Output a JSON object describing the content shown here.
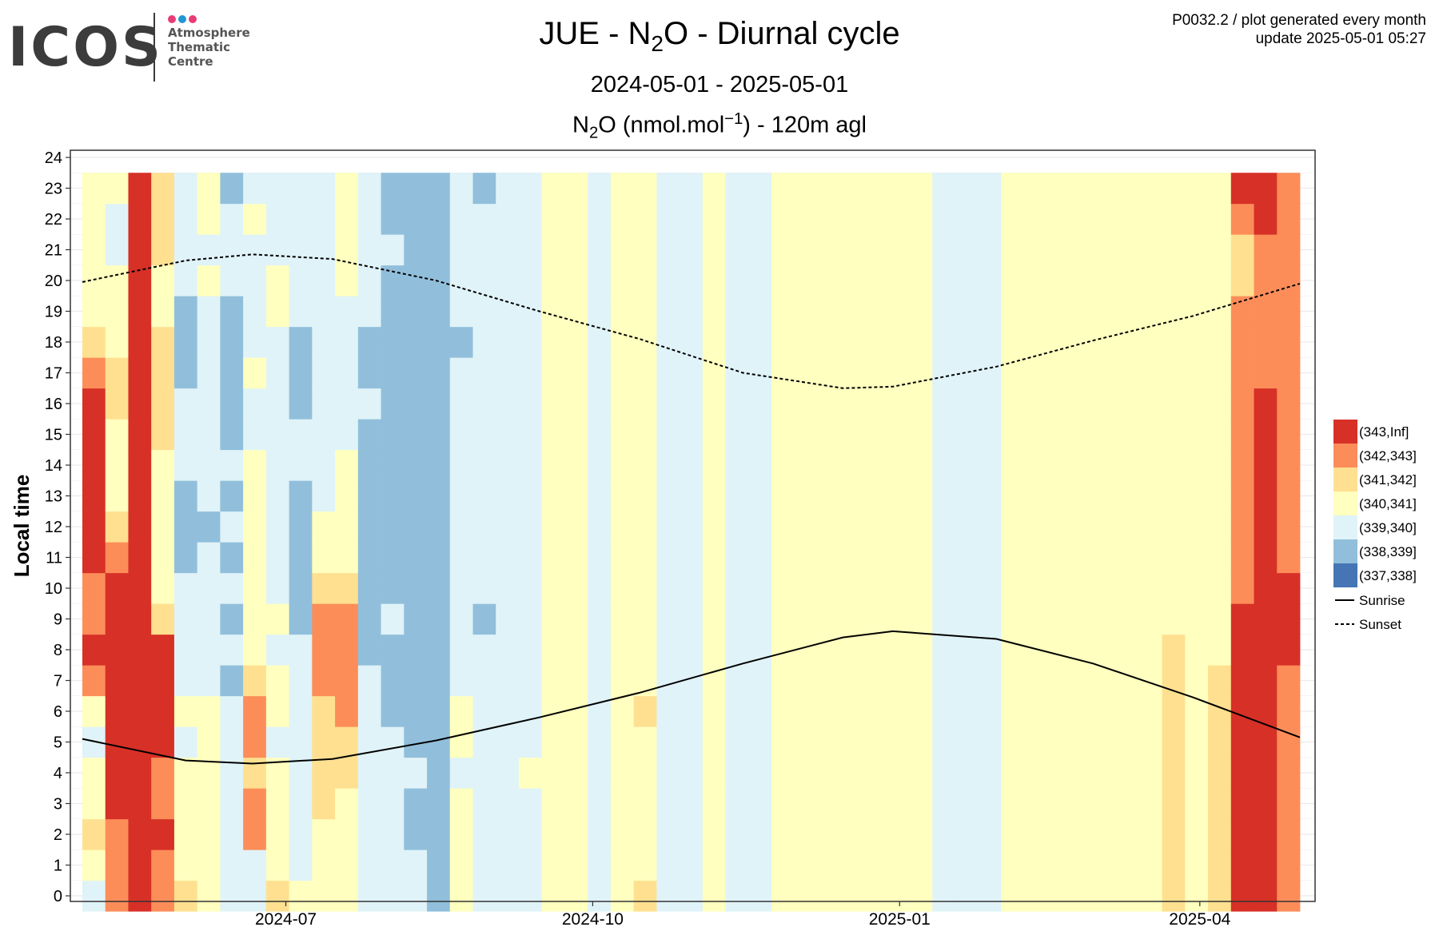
{
  "logo": {
    "word": "ICOS",
    "lines": [
      "Atmosphere",
      "Thematic",
      "Centre"
    ],
    "dot_colors": [
      "#e63d74",
      "#2196d6",
      "#e63d74"
    ]
  },
  "header": {
    "title_pre": "JUE - N",
    "title_sub": "2",
    "title_post": "O - Diurnal cycle",
    "subtitle": "2024-05-01 - 2025-05-01",
    "unit_pre": "N",
    "unit_sub": "2",
    "unit_mid": "O (nmol.mol",
    "unit_sup": "−1",
    "unit_post": ") - 120m agl",
    "meta_line1": "P0032.2 / plot generated every month",
    "meta_line2": "update  2025-05-01 05:27"
  },
  "chart_data": {
    "type": "heatmap",
    "ylabel": "Local time",
    "xlabel": "",
    "x_range": [
      "2024-05-01",
      "2025-05-01"
    ],
    "x_ticks": [
      "2024-07",
      "2024-10",
      "2025-01",
      "2025-04"
    ],
    "ylim": [
      0,
      24
    ],
    "y_ticks": [
      0,
      1,
      2,
      3,
      4,
      5,
      6,
      7,
      8,
      9,
      10,
      11,
      12,
      13,
      14,
      15,
      16,
      17,
      18,
      19,
      20,
      21,
      22,
      23,
      24
    ],
    "grid": true,
    "legend_position": "right",
    "bins": [
      {
        "label": "(343,Inf]",
        "color": "#d73027"
      },
      {
        "label": "(342,343]",
        "color": "#fc8d59"
      },
      {
        "label": "(341,342]",
        "color": "#fee090"
      },
      {
        "label": "(340,341]",
        "color": "#ffffbf"
      },
      {
        "label": "(339,340]",
        "color": "#e0f3f8"
      },
      {
        "label": "(338,339]",
        "color": "#91bfdb"
      },
      {
        "label": "(337,338]",
        "color": "#4575b4"
      }
    ],
    "lines": [
      {
        "name": "Sunrise",
        "style": "solid",
        "dates": [
          "2024-05-01",
          "2024-06-01",
          "2024-06-21",
          "2024-07-15",
          "2024-08-15",
          "2024-09-15",
          "2024-10-15",
          "2024-11-15",
          "2024-12-15",
          "2024-12-30",
          "2025-01-30",
          "2025-02-28",
          "2025-03-30",
          "2025-05-01"
        ],
        "values": [
          5.1,
          4.4,
          4.3,
          4.45,
          5.05,
          5.8,
          6.6,
          7.55,
          8.4,
          8.6,
          8.35,
          7.55,
          6.45,
          5.15
        ]
      },
      {
        "name": "Sunset",
        "style": "dashed",
        "dates": [
          "2024-05-01",
          "2024-06-01",
          "2024-06-21",
          "2024-07-15",
          "2024-08-15",
          "2024-09-15",
          "2024-10-15",
          "2024-11-15",
          "2024-12-15",
          "2024-12-30",
          "2025-01-30",
          "2025-02-28",
          "2025-03-30",
          "2025-05-01"
        ],
        "values": [
          19.95,
          20.65,
          20.85,
          20.7,
          20.0,
          19.0,
          18.1,
          17.0,
          16.5,
          16.55,
          17.2,
          18.05,
          18.85,
          19.9
        ]
      }
    ],
    "weekly_bins": [
      [
        4,
        3,
        2,
        3,
        3,
        4,
        3,
        1,
        0,
        1,
        1,
        0,
        0,
        0,
        0,
        0,
        0,
        1,
        2,
        3,
        3,
        3,
        3,
        3
      ],
      [
        1,
        1,
        1,
        0,
        0,
        0,
        0,
        0,
        0,
        0,
        0,
        1,
        2,
        3,
        3,
        3,
        2,
        2,
        3,
        3,
        3,
        4,
        4,
        3
      ],
      [
        0,
        0,
        0,
        0,
        0,
        0,
        0,
        0,
        0,
        0,
        0,
        0,
        0,
        0,
        0,
        0,
        0,
        0,
        0,
        0,
        0,
        0,
        0,
        0
      ],
      [
        1,
        1,
        0,
        1,
        1,
        0,
        0,
        0,
        0,
        2,
        3,
        3,
        3,
        3,
        3,
        2,
        2,
        2,
        2,
        3,
        3,
        2,
        2,
        2
      ],
      [
        2,
        3,
        3,
        3,
        3,
        4,
        3,
        4,
        4,
        4,
        4,
        5,
        5,
        5,
        4,
        4,
        4,
        5,
        5,
        5,
        4,
        4,
        4,
        4
      ],
      [
        3,
        3,
        3,
        3,
        3,
        3,
        3,
        4,
        4,
        4,
        4,
        4,
        5,
        4,
        4,
        4,
        4,
        4,
        4,
        4,
        3,
        4,
        3,
        3
      ],
      [
        4,
        4,
        4,
        4,
        4,
        4,
        4,
        5,
        4,
        5,
        4,
        5,
        4,
        5,
        4,
        5,
        5,
        5,
        5,
        5,
        4,
        4,
        4,
        5
      ],
      [
        4,
        4,
        1,
        1,
        2,
        1,
        1,
        2,
        3,
        3,
        3,
        3,
        3,
        3,
        3,
        4,
        4,
        3,
        4,
        4,
        4,
        4,
        3,
        4
      ],
      [
        2,
        3,
        3,
        3,
        3,
        4,
        3,
        3,
        4,
        3,
        4,
        4,
        4,
        4,
        4,
        4,
        4,
        4,
        4,
        3,
        3,
        4,
        4,
        4
      ],
      [
        3,
        4,
        4,
        4,
        4,
        4,
        4,
        4,
        4,
        5,
        5,
        5,
        5,
        5,
        4,
        4,
        5,
        5,
        5,
        4,
        4,
        4,
        4,
        4
      ],
      [
        3,
        3,
        3,
        2,
        2,
        2,
        2,
        1,
        1,
        1,
        2,
        3,
        3,
        4,
        4,
        4,
        4,
        4,
        4,
        4,
        4,
        4,
        4,
        4
      ],
      [
        3,
        3,
        3,
        3,
        2,
        2,
        1,
        1,
        1,
        1,
        2,
        3,
        3,
        3,
        3,
        4,
        4,
        4,
        4,
        4,
        3,
        3,
        3,
        3
      ],
      [
        4,
        4,
        4,
        4,
        4,
        4,
        4,
        4,
        5,
        5,
        5,
        5,
        5,
        5,
        5,
        5,
        4,
        5,
        5,
        4,
        4,
        4,
        4,
        4
      ],
      [
        4,
        4,
        4,
        4,
        4,
        4,
        5,
        5,
        5,
        4,
        5,
        5,
        5,
        5,
        5,
        5,
        5,
        5,
        5,
        5,
        5,
        4,
        5,
        5
      ],
      [
        4,
        4,
        5,
        5,
        4,
        5,
        5,
        5,
        5,
        5,
        5,
        5,
        5,
        5,
        5,
        5,
        5,
        5,
        5,
        5,
        5,
        5,
        5,
        5
      ],
      [
        5,
        5,
        5,
        5,
        5,
        5,
        5,
        5,
        5,
        5,
        5,
        5,
        5,
        5,
        5,
        5,
        5,
        5,
        5,
        5,
        5,
        5,
        5,
        5
      ],
      [
        3,
        3,
        3,
        3,
        4,
        3,
        3,
        4,
        4,
        4,
        4,
        4,
        4,
        4,
        4,
        4,
        4,
        4,
        5,
        4,
        4,
        4,
        4,
        4
      ],
      [
        4,
        4,
        4,
        4,
        4,
        4,
        4,
        4,
        4,
        5,
        4,
        4,
        4,
        4,
        4,
        4,
        4,
        4,
        4,
        4,
        4,
        4,
        4,
        5
      ],
      [
        4,
        4,
        4,
        4,
        4,
        4,
        4,
        4,
        4,
        4,
        4,
        4,
        4,
        4,
        4,
        4,
        4,
        4,
        4,
        4,
        4,
        4,
        4,
        4
      ],
      [
        4,
        4,
        4,
        4,
        3,
        4,
        4,
        4,
        4,
        4,
        4,
        4,
        4,
        4,
        4,
        4,
        4,
        4,
        4,
        4,
        4,
        4,
        4,
        4
      ],
      [
        3,
        3,
        3,
        3,
        3,
        3,
        3,
        3,
        3,
        3,
        3,
        3,
        3,
        3,
        3,
        3,
        3,
        3,
        3,
        3,
        3,
        3,
        3,
        3
      ],
      [
        3,
        3,
        3,
        3,
        3,
        3,
        3,
        3,
        3,
        3,
        3,
        3,
        3,
        3,
        3,
        3,
        3,
        3,
        3,
        3,
        3,
        3,
        3,
        3
      ],
      [
        4,
        4,
        4,
        4,
        4,
        4,
        4,
        4,
        4,
        4,
        4,
        4,
        4,
        4,
        4,
        4,
        4,
        4,
        4,
        4,
        4,
        4,
        4,
        4
      ],
      [
        3,
        3,
        3,
        3,
        3,
        3,
        3,
        3,
        3,
        3,
        3,
        3,
        3,
        3,
        3,
        3,
        3,
        3,
        3,
        3,
        3,
        3,
        3,
        3
      ],
      [
        2,
        3,
        3,
        3,
        3,
        3,
        2,
        3,
        3,
        3,
        3,
        3,
        3,
        3,
        3,
        3,
        3,
        3,
        3,
        3,
        3,
        3,
        3,
        3
      ],
      [
        4,
        4,
        4,
        4,
        4,
        4,
        4,
        4,
        4,
        4,
        4,
        4,
        4,
        4,
        4,
        4,
        4,
        4,
        4,
        4,
        4,
        4,
        4,
        4
      ],
      [
        4,
        4,
        4,
        4,
        4,
        4,
        4,
        4,
        4,
        4,
        4,
        4,
        4,
        4,
        4,
        4,
        4,
        4,
        4,
        4,
        4,
        4,
        4,
        4
      ],
      [
        3,
        3,
        3,
        3,
        3,
        3,
        3,
        3,
        3,
        3,
        3,
        3,
        3,
        3,
        3,
        3,
        3,
        3,
        3,
        3,
        3,
        3,
        3,
        3
      ],
      [
        4,
        4,
        4,
        4,
        4,
        4,
        4,
        4,
        4,
        4,
        4,
        4,
        4,
        4,
        4,
        4,
        4,
        4,
        4,
        4,
        4,
        4,
        4,
        4
      ],
      [
        4,
        4,
        4,
        4,
        4,
        4,
        4,
        4,
        4,
        4,
        4,
        4,
        4,
        4,
        4,
        4,
        4,
        4,
        4,
        4,
        4,
        4,
        4,
        4
      ],
      [
        3,
        3,
        3,
        3,
        3,
        3,
        3,
        3,
        3,
        3,
        3,
        3,
        3,
        3,
        3,
        3,
        3,
        3,
        3,
        3,
        3,
        3,
        3,
        3
      ],
      [
        3,
        3,
        3,
        3,
        3,
        3,
        3,
        3,
        3,
        3,
        3,
        3,
        3,
        3,
        3,
        3,
        3,
        3,
        3,
        3,
        3,
        3,
        3,
        3
      ],
      [
        3,
        3,
        3,
        3,
        3,
        3,
        3,
        3,
        3,
        3,
        3,
        3,
        3,
        3,
        3,
        3,
        3,
        3,
        3,
        3,
        3,
        3,
        3,
        3
      ],
      [
        3,
        3,
        3,
        3,
        3,
        3,
        3,
        3,
        3,
        3,
        3,
        3,
        3,
        3,
        3,
        3,
        3,
        3,
        3,
        3,
        3,
        3,
        3,
        3
      ],
      [
        3,
        3,
        3,
        3,
        3,
        3,
        3,
        3,
        3,
        3,
        3,
        3,
        3,
        3,
        3,
        3,
        3,
        3,
        3,
        3,
        3,
        3,
        3,
        3
      ],
      [
        3,
        3,
        3,
        3,
        3,
        3,
        3,
        3,
        3,
        3,
        3,
        3,
        3,
        3,
        3,
        3,
        3,
        3,
        3,
        3,
        3,
        3,
        3,
        3
      ],
      [
        3,
        3,
        3,
        3,
        3,
        3,
        3,
        3,
        3,
        3,
        3,
        3,
        3,
        3,
        3,
        3,
        3,
        3,
        3,
        3,
        3,
        3,
        3,
        3
      ],
      [
        4,
        4,
        4,
        4,
        4,
        4,
        4,
        4,
        4,
        4,
        4,
        4,
        4,
        4,
        4,
        4,
        4,
        4,
        4,
        4,
        4,
        4,
        4,
        4
      ],
      [
        4,
        4,
        4,
        4,
        4,
        4,
        4,
        4,
        4,
        4,
        4,
        4,
        4,
        4,
        4,
        4,
        4,
        4,
        4,
        4,
        4,
        4,
        4,
        4
      ],
      [
        4,
        4,
        4,
        4,
        4,
        4,
        4,
        4,
        4,
        4,
        4,
        4,
        4,
        4,
        4,
        4,
        4,
        4,
        4,
        4,
        4,
        4,
        4,
        4
      ],
      [
        3,
        3,
        3,
        3,
        3,
        3,
        3,
        3,
        3,
        3,
        3,
        3,
        3,
        3,
        3,
        3,
        3,
        3,
        3,
        3,
        3,
        3,
        3,
        3
      ],
      [
        3,
        3,
        3,
        3,
        3,
        3,
        3,
        3,
        3,
        3,
        3,
        3,
        3,
        3,
        3,
        3,
        3,
        3,
        3,
        3,
        3,
        3,
        3,
        3
      ],
      [
        3,
        3,
        3,
        3,
        3,
        3,
        3,
        3,
        3,
        3,
        3,
        3,
        3,
        3,
        3,
        3,
        3,
        3,
        3,
        3,
        3,
        3,
        3,
        3
      ],
      [
        3,
        3,
        3,
        3,
        3,
        3,
        3,
        3,
        3,
        3,
        3,
        3,
        3,
        3,
        3,
        3,
        3,
        3,
        3,
        3,
        3,
        3,
        3,
        3
      ],
      [
        3,
        3,
        3,
        3,
        3,
        3,
        3,
        3,
        3,
        3,
        3,
        3,
        3,
        3,
        3,
        3,
        3,
        3,
        3,
        3,
        3,
        3,
        3,
        3
      ],
      [
        3,
        3,
        3,
        3,
        3,
        3,
        3,
        3,
        3,
        3,
        3,
        3,
        3,
        3,
        3,
        3,
        3,
        3,
        3,
        3,
        3,
        3,
        3,
        3
      ],
      [
        3,
        3,
        3,
        3,
        3,
        3,
        3,
        3,
        3,
        3,
        3,
        3,
        3,
        3,
        3,
        3,
        3,
        3,
        3,
        3,
        3,
        3,
        3,
        3
      ],
      [
        2,
        2,
        2,
        2,
        2,
        2,
        2,
        2,
        2,
        3,
        3,
        3,
        3,
        3,
        3,
        3,
        3,
        3,
        3,
        3,
        3,
        3,
        3,
        3
      ],
      [
        3,
        3,
        3,
        3,
        3,
        3,
        3,
        3,
        3,
        3,
        3,
        3,
        3,
        3,
        3,
        3,
        3,
        3,
        3,
        3,
        3,
        3,
        3,
        3
      ],
      [
        2,
        2,
        2,
        2,
        2,
        2,
        2,
        2,
        3,
        3,
        3,
        3,
        3,
        3,
        3,
        3,
        3,
        3,
        3,
        3,
        3,
        3,
        3,
        3
      ],
      [
        0,
        0,
        0,
        0,
        0,
        0,
        0,
        0,
        0,
        0,
        1,
        1,
        1,
        1,
        1,
        1,
        1,
        1,
        1,
        1,
        2,
        2,
        1,
        0
      ],
      [
        0,
        0,
        0,
        0,
        0,
        0,
        0,
        0,
        0,
        0,
        0,
        0,
        0,
        0,
        0,
        0,
        0,
        1,
        1,
        1,
        1,
        1,
        0,
        0
      ],
      [
        1,
        1,
        1,
        1,
        1,
        1,
        1,
        1,
        0,
        0,
        0,
        1,
        1,
        1,
        1,
        1,
        1,
        1,
        1,
        1,
        1,
        1,
        1,
        1
      ]
    ]
  }
}
